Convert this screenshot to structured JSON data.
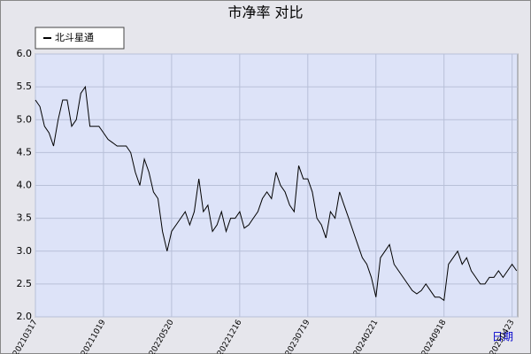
{
  "chart_data": {
    "type": "line",
    "title": "市净率  对比",
    "x_label": "日期",
    "categories": [
      "20210317",
      null,
      null,
      null,
      null,
      null,
      null,
      null,
      null,
      null,
      null,
      null,
      null,
      null,
      null,
      "20211019",
      null,
      null,
      null,
      null,
      null,
      null,
      null,
      null,
      null,
      null,
      null,
      null,
      null,
      null,
      "20220520",
      null,
      null,
      null,
      null,
      null,
      null,
      null,
      null,
      null,
      null,
      null,
      null,
      null,
      null,
      "20221216",
      null,
      null,
      null,
      null,
      null,
      null,
      null,
      null,
      null,
      null,
      null,
      null,
      null,
      null,
      "20230719",
      null,
      null,
      null,
      null,
      null,
      null,
      null,
      null,
      null,
      null,
      null,
      null,
      null,
      null,
      "20240221",
      null,
      null,
      null,
      null,
      null,
      null,
      null,
      null,
      null,
      null,
      null,
      null,
      null,
      null,
      "20240918",
      null,
      null,
      null,
      null,
      null,
      null,
      null,
      null,
      null,
      null,
      null,
      null,
      null,
      null,
      "20250423",
      null
    ],
    "series": [
      {
        "name": "北斗星通",
        "color": "#000000",
        "values": [
          5.3,
          5.2,
          4.9,
          4.8,
          4.6,
          5.0,
          5.3,
          5.3,
          4.9,
          5.0,
          5.4,
          5.5,
          4.9,
          4.9,
          4.9,
          4.8,
          4.7,
          4.65,
          4.6,
          4.6,
          4.6,
          4.5,
          4.2,
          4.0,
          4.4,
          4.2,
          3.9,
          3.8,
          3.3,
          3.0,
          3.3,
          3.4,
          3.5,
          3.6,
          3.4,
          3.6,
          4.1,
          3.6,
          3.7,
          3.3,
          3.4,
          3.6,
          3.3,
          3.5,
          3.5,
          3.6,
          3.35,
          3.4,
          3.5,
          3.6,
          3.8,
          3.9,
          3.8,
          4.2,
          4.0,
          3.9,
          3.7,
          3.6,
          4.3,
          4.1,
          4.1,
          3.9,
          3.5,
          3.4,
          3.2,
          3.6,
          3.5,
          3.9,
          3.7,
          3.5,
          3.3,
          3.1,
          2.9,
          2.8,
          2.6,
          2.3,
          2.9,
          3.0,
          3.1,
          2.8,
          2.7,
          2.6,
          2.5,
          2.4,
          2.35,
          2.4,
          2.5,
          2.4,
          2.3,
          2.3,
          2.25,
          2.8,
          2.9,
          3.0,
          2.8,
          2.9,
          2.7,
          2.6,
          2.5,
          2.5,
          2.6,
          2.6,
          2.7,
          2.6,
          2.7,
          2.8,
          2.7
        ]
      }
    ],
    "ylim": [
      2,
      6
    ],
    "yticks": [
      {
        "value": 2,
        "label": "2.0"
      },
      {
        "value": 2.5,
        "label": "2.5"
      },
      {
        "value": 3,
        "label": "3.0"
      },
      {
        "value": 3.5,
        "label": "3.5"
      },
      {
        "value": 4,
        "label": "4.0"
      },
      {
        "value": 4.5,
        "label": "4.5"
      },
      {
        "value": 5,
        "label": "5.0"
      },
      {
        "value": 5.5,
        "label": "5.5"
      },
      {
        "value": 6,
        "label": "6.0"
      }
    ],
    "grid": true
  }
}
